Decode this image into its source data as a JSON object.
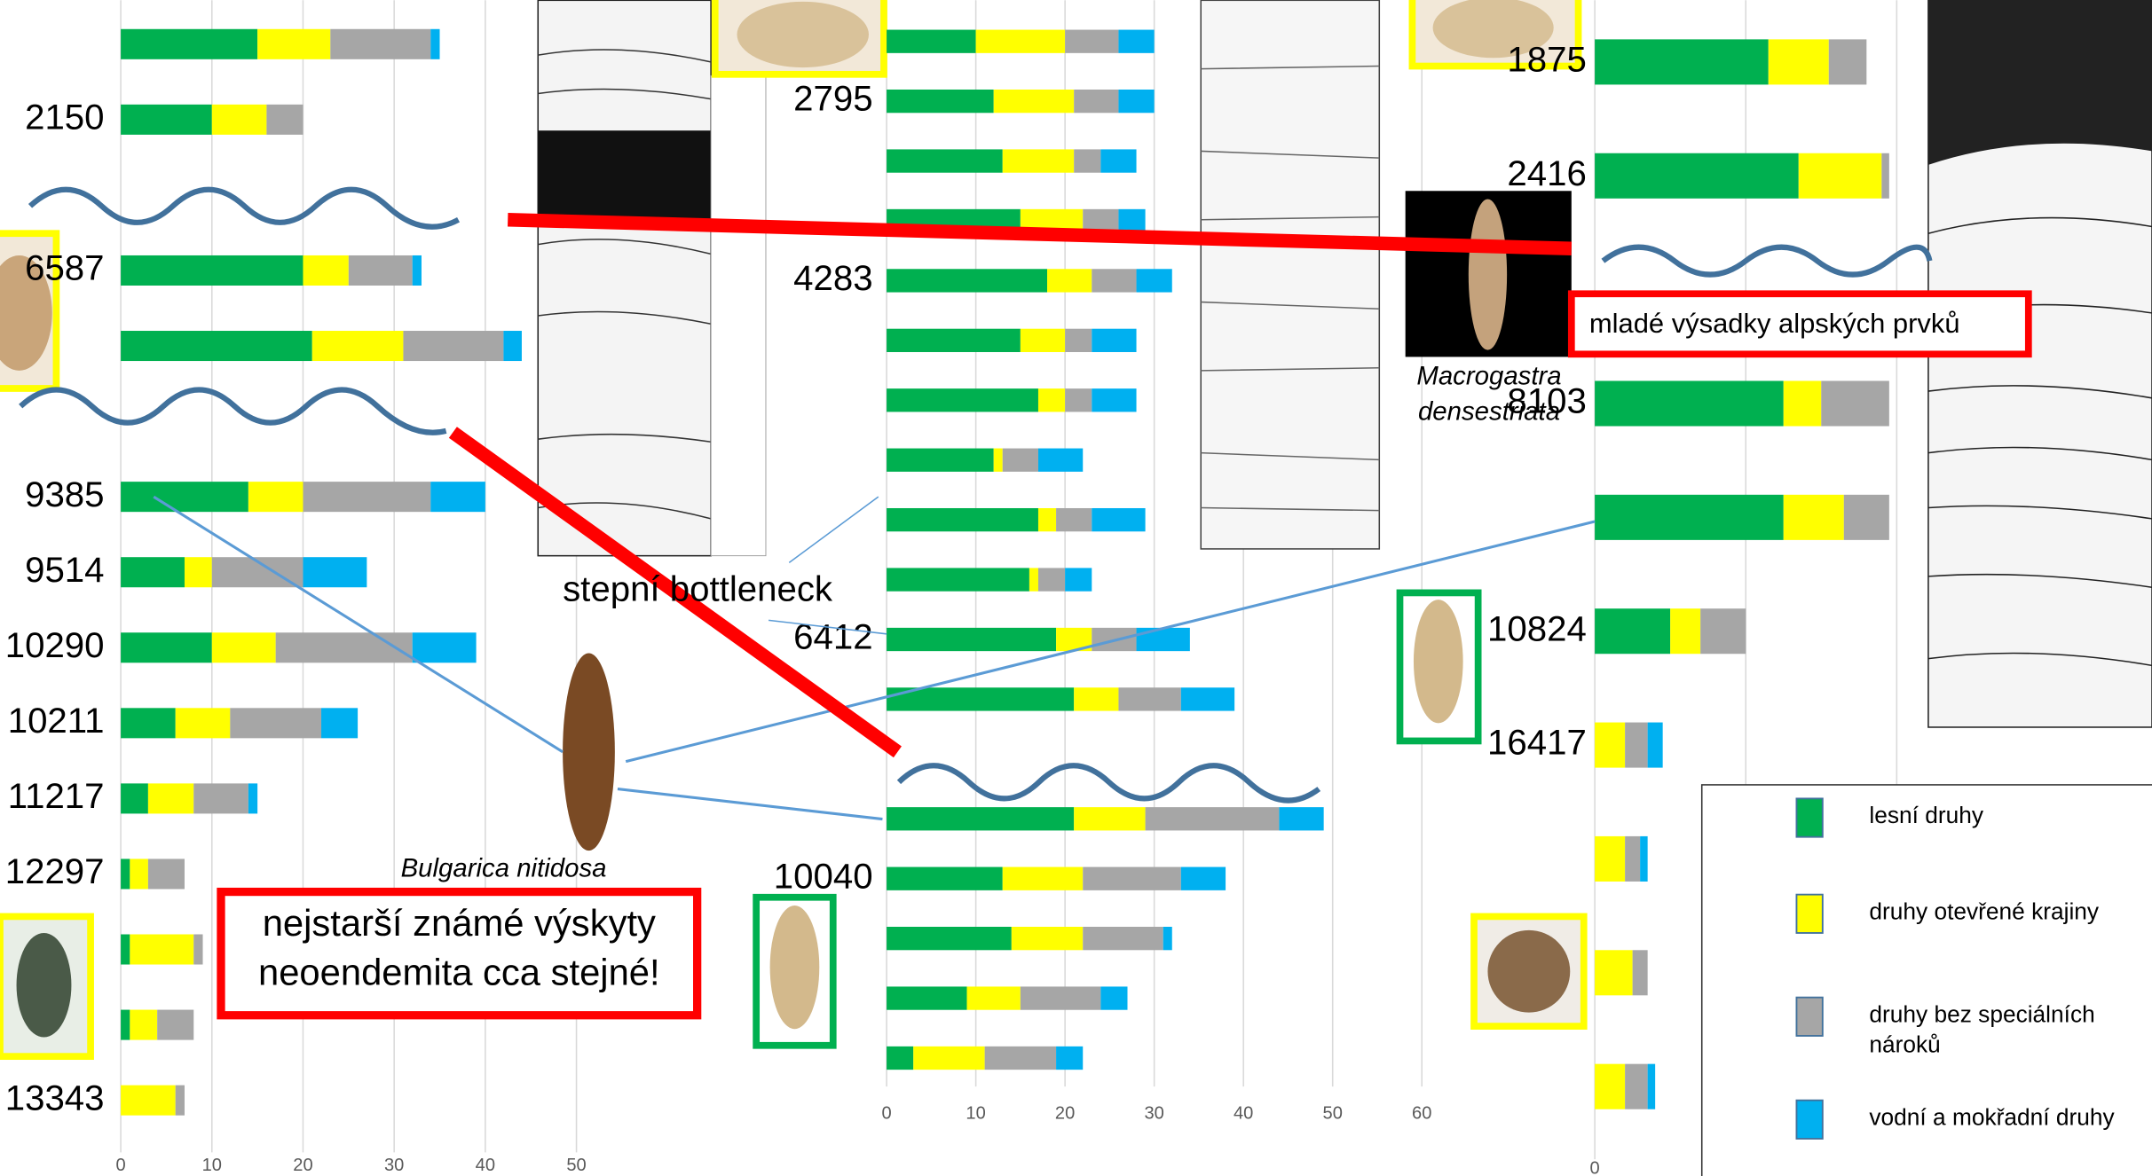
{
  "chart_data": [
    {
      "type": "bar",
      "orientation": "horizontal",
      "stacked": true,
      "grid": true,
      "categories": [
        null,
        "2150",
        null,
        "6587",
        null,
        null,
        "9385",
        "9514",
        "10290",
        "10211",
        "11217",
        "12297",
        null,
        null,
        "13343"
      ],
      "series": [
        {
          "color": "#00b050",
          "values": [
            15,
            10,
            null,
            20,
            21,
            null,
            14,
            7,
            10,
            6,
            3,
            1,
            1,
            1,
            0
          ]
        },
        {
          "color": "#ffff00",
          "values": [
            8,
            6,
            null,
            5,
            10,
            null,
            6,
            3,
            7,
            6,
            5,
            2,
            7,
            3,
            6
          ]
        },
        {
          "color": "#a6a6a6",
          "values": [
            11,
            4,
            null,
            7,
            11,
            null,
            14,
            10,
            15,
            10,
            6,
            4,
            1,
            4,
            1
          ]
        },
        {
          "color": "#00b0f0",
          "values": [
            1,
            0,
            null,
            1,
            2,
            null,
            6,
            7,
            7,
            4,
            1,
            0,
            0,
            0,
            0
          ]
        }
      ],
      "xlim": [
        0,
        50
      ],
      "xticks": [
        0,
        10,
        20,
        30,
        40,
        50
      ]
    },
    {
      "type": "bar",
      "orientation": "horizontal",
      "stacked": true,
      "grid": true,
      "categories": [
        null,
        "2795",
        null,
        null,
        "4283",
        null,
        null,
        null,
        null,
        null,
        "6412",
        null,
        null,
        null,
        "10040",
        null,
        null,
        null
      ],
      "series": [
        {
          "color": "#00b050",
          "values": [
            10,
            12,
            13,
            15,
            18,
            15,
            17,
            12,
            17,
            16,
            19,
            21,
            null,
            21,
            13,
            14,
            9,
            3
          ]
        },
        {
          "color": "#ffff00",
          "values": [
            10,
            9,
            8,
            7,
            5,
            5,
            3,
            1,
            2,
            1,
            4,
            5,
            null,
            8,
            9,
            8,
            6,
            8
          ]
        },
        {
          "color": "#a6a6a6",
          "values": [
            6,
            5,
            3,
            4,
            5,
            3,
            3,
            4,
            4,
            3,
            5,
            7,
            null,
            15,
            11,
            9,
            9,
            8
          ]
        },
        {
          "color": "#00b0f0",
          "values": [
            4,
            4,
            4,
            3,
            4,
            5,
            5,
            5,
            6,
            3,
            6,
            6,
            null,
            5,
            5,
            1,
            3,
            3
          ]
        }
      ],
      "xlim": [
        0,
        60
      ],
      "xticks": [
        0,
        10,
        20,
        30,
        40,
        50,
        60
      ]
    },
    {
      "type": "bar",
      "orientation": "horizontal",
      "stacked": true,
      "grid": true,
      "legend": "lower right",
      "categories": [
        "1875",
        "2416",
        null,
        "8103",
        null,
        "10824",
        "16417",
        null,
        null,
        null
      ],
      "series": [
        {
          "name": "lesní druhy",
          "color": "#00b050",
          "values": [
            23,
            27,
            null,
            25,
            25,
            10,
            0,
            0,
            0,
            0
          ]
        },
        {
          "name": "druhy otevřené krajiny",
          "color": "#ffff00",
          "values": [
            8,
            11,
            null,
            5,
            8,
            4,
            4,
            4,
            5,
            4
          ]
        },
        {
          "name": "druhy bez speciálních nároků",
          "color": "#a6a6a6",
          "values": [
            5,
            1,
            null,
            9,
            6,
            6,
            3,
            2,
            2,
            3
          ]
        },
        {
          "name": "vodní a mokřadní druhy",
          "color": "#00b0f0",
          "values": [
            0,
            0,
            null,
            0,
            0,
            0,
            2,
            1,
            0,
            1
          ]
        }
      ],
      "xlim": [
        0,
        40
      ],
      "xticks": [
        0,
        20,
        40
      ]
    }
  ],
  "annotations": {
    "bottleneck": "stepní bottleneck",
    "alpine": "mladé výsadky alpských prvků",
    "oldest": "nejstarší známé výskyty neoendemita cca stejné!",
    "bulgarica": "Bulgarica nitidosa",
    "macrogastra": "Macrogastra densestriata"
  }
}
